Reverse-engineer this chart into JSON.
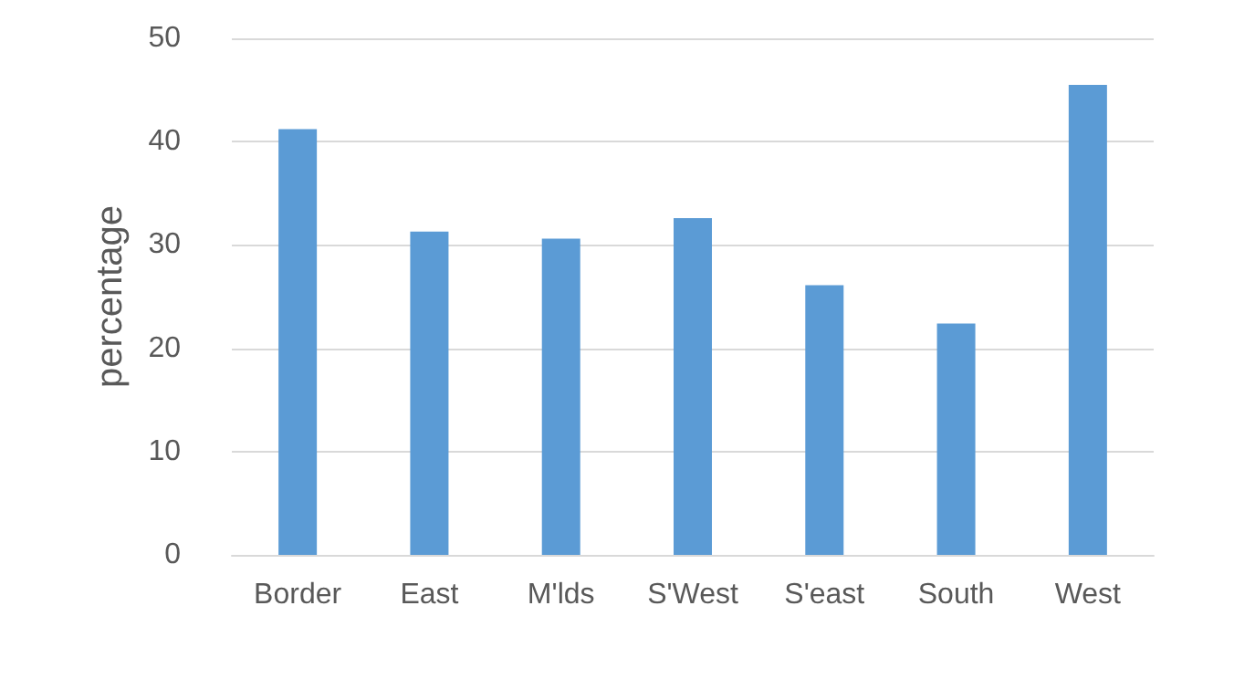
{
  "chart_data": {
    "type": "bar",
    "ylabel": "percentage",
    "categories": [
      "Border",
      "East",
      "M'lds",
      "S'West",
      "S'east",
      "South",
      "West"
    ],
    "values": [
      41.2,
      31.3,
      30.6,
      32.6,
      26.1,
      22.4,
      45.5
    ],
    "color": "#5b9bd5",
    "ylim": [
      0,
      50
    ],
    "yticks": [
      0,
      10,
      20,
      30,
      40,
      50
    ],
    "grid": "y"
  }
}
